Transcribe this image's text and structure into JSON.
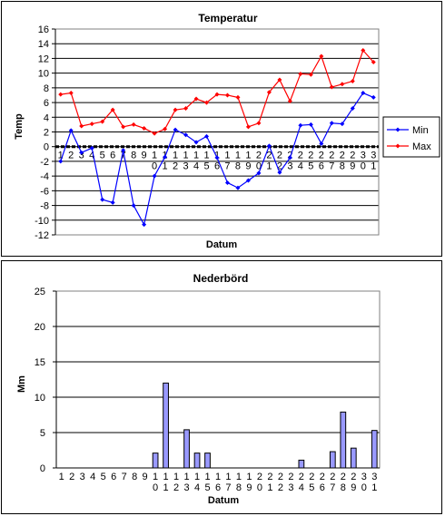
{
  "chart_data": [
    {
      "type": "line",
      "title": "Temperatur",
      "xlabel": "Datum",
      "ylabel": "Temp",
      "ylim": [
        -12,
        16
      ],
      "yticks": [
        -12,
        -10,
        -8,
        -6,
        -4,
        -2,
        0,
        2,
        4,
        6,
        8,
        10,
        12,
        14,
        16
      ],
      "categories": [
        "1",
        "2",
        "3",
        "4",
        "5",
        "6",
        "7",
        "8",
        "9",
        "10",
        "11",
        "12",
        "13",
        "14",
        "15",
        "16",
        "17",
        "18",
        "19",
        "20",
        "21",
        "22",
        "23",
        "24",
        "25",
        "26",
        "27",
        "28",
        "29",
        "30",
        "31"
      ],
      "grid": true,
      "legend": "right",
      "series": [
        {
          "name": "Min",
          "color": "#0000ff",
          "values": [
            -2.0,
            2.2,
            -0.8,
            -0.2,
            -7.2,
            -7.6,
            -0.5,
            -8.0,
            -10.6,
            -4.0,
            -1.4,
            2.3,
            1.6,
            0.6,
            1.4,
            -1.5,
            -4.9,
            -5.6,
            -4.6,
            -3.6,
            0.1,
            -3.5,
            -1.5,
            2.9,
            3.0,
            0.4,
            3.2,
            3.1,
            5.2,
            7.3,
            6.7
          ]
        },
        {
          "name": "Max",
          "color": "#ff0000",
          "values": [
            7.1,
            7.3,
            2.8,
            3.1,
            3.4,
            5.0,
            2.7,
            3.0,
            2.5,
            1.8,
            2.4,
            5.0,
            5.2,
            6.5,
            6.0,
            7.1,
            7.0,
            6.7,
            2.7,
            3.2,
            7.4,
            9.1,
            6.2,
            9.9,
            9.8,
            12.3,
            8.1,
            8.5,
            8.9,
            13.1,
            11.5
          ]
        }
      ]
    },
    {
      "type": "bar",
      "title": "Nederbörd",
      "xlabel": "Datum",
      "ylabel": "Mm",
      "ylim": [
        0,
        25
      ],
      "yticks": [
        0,
        5,
        10,
        15,
        20,
        25
      ],
      "categories": [
        "1",
        "2",
        "3",
        "4",
        "5",
        "6",
        "7",
        "8",
        "9",
        "10",
        "11",
        "12",
        "13",
        "14",
        "15",
        "16",
        "17",
        "18",
        "19",
        "20",
        "21",
        "22",
        "23",
        "24",
        "25",
        "26",
        "27",
        "28",
        "29",
        "30",
        "31"
      ],
      "grid": true,
      "color": "#9999ff",
      "values": [
        0,
        0,
        0,
        0,
        0,
        0,
        0,
        0,
        0,
        2.1,
        12.0,
        0,
        5.4,
        2.1,
        2.1,
        0,
        0,
        0,
        0,
        0,
        0,
        0,
        0,
        1.1,
        0,
        0,
        2.3,
        7.9,
        2.8,
        0,
        5.3
      ]
    }
  ]
}
